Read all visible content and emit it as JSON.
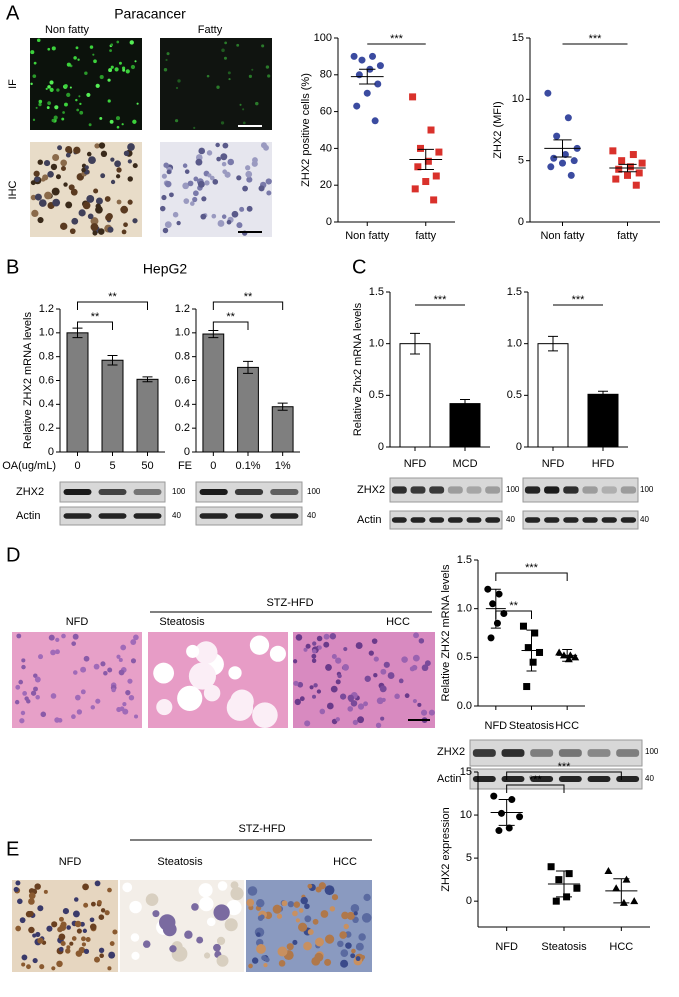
{
  "panels": {
    "A": {
      "letter": "A",
      "title": "Paracancer",
      "columns": [
        "Non fatty",
        "Fatty"
      ],
      "rows": [
        "IF",
        "IHC"
      ]
    },
    "B": {
      "letter": "B",
      "title": "HepG2",
      "blot_rows": [
        "ZHX2",
        "Actin"
      ],
      "markers": [
        "100",
        "40"
      ]
    },
    "C": {
      "letter": "C",
      "blot_rows": [
        "ZHX2",
        "Actin"
      ],
      "markers": [
        "100",
        "40"
      ]
    },
    "D": {
      "letter": "D",
      "group": "STZ-HFD",
      "images": [
        "NFD",
        "Steatosis",
        "HCC"
      ],
      "blot_rows": [
        "ZHX2",
        "Actin"
      ],
      "markers": [
        "100",
        "40"
      ]
    },
    "E": {
      "letter": "E",
      "group": "STZ-HFD",
      "images": [
        "NFD",
        "Steatosis",
        "HCC"
      ]
    }
  },
  "chart_data": [
    {
      "type": "strip",
      "y_label": "ZHX2 positive cells (%)",
      "categories": [
        "Non fatty",
        "fatty"
      ],
      "points": [
        [
          90,
          90,
          88,
          85,
          83,
          80,
          75,
          70,
          63,
          55
        ],
        [
          68,
          50,
          40,
          38,
          33,
          30,
          25,
          22,
          18,
          12
        ]
      ],
      "colors": [
        "#3b4ba0",
        "#d9312b"
      ],
      "markers": [
        "circle",
        "square"
      ],
      "mean": [
        79,
        34
      ],
      "error": [
        4,
        5.5
      ],
      "ylim": [
        0,
        100
      ],
      "yticks": [
        0,
        20,
        40,
        60,
        80,
        100
      ],
      "annotations": [
        "***"
      ]
    },
    {
      "type": "strip",
      "y_label": "ZHX2 (MFI)",
      "categories": [
        "Non fatty",
        "fatty"
      ],
      "points": [
        [
          10.5,
          8.5,
          7,
          6,
          5.5,
          5.2,
          5,
          4.8,
          4.5,
          3.8
        ],
        [
          5.8,
          5.5,
          5,
          4.8,
          4.5,
          4.3,
          4,
          3.8,
          3.5,
          3
        ]
      ],
      "colors": [
        "#3b4ba0",
        "#d9312b"
      ],
      "markers": [
        "circle",
        "square"
      ],
      "mean": [
        6,
        4.4
      ],
      "error": [
        0.7,
        0.3
      ],
      "ylim": [
        0,
        15
      ],
      "yticks": [
        0,
        5,
        10,
        15
      ],
      "annotations": [
        "***"
      ]
    },
    {
      "type": "bar",
      "y_label": "Relative ZHX2 mRNA levels",
      "x_label": "OA(ug/mL)",
      "categories": [
        "0",
        "5",
        "50"
      ],
      "values": [
        1.0,
        0.77,
        0.61
      ],
      "errors": [
        0.04,
        0.04,
        0.02
      ],
      "colors": [
        "#7f7f7f",
        "#7f7f7f",
        "#7f7f7f"
      ],
      "ylim": [
        0,
        1.2
      ],
      "yticks": [
        0,
        0.2,
        0.4,
        0.6,
        0.8,
        {
          "value": 1,
          "label": "1.0"
        },
        1.2
      ],
      "annotations": [
        "**",
        "**"
      ]
    },
    {
      "type": "bar",
      "x_label": "FE",
      "categories": [
        "0",
        "0.1%",
        "1%"
      ],
      "values": [
        0.99,
        0.71,
        0.38
      ],
      "errors": [
        0.03,
        0.05,
        0.03
      ],
      "colors": [
        "#7f7f7f",
        "#7f7f7f",
        "#7f7f7f"
      ],
      "ylim": [
        0,
        1.2
      ],
      "yticks": [
        0,
        0.2,
        0.4,
        0.6,
        0.8,
        {
          "value": 1,
          "label": "1.0"
        },
        1.2
      ],
      "annotations": [
        "**",
        "**"
      ]
    },
    {
      "type": "bar",
      "y_label": "Relative Zhx2 mRNA levels",
      "categories": [
        "NFD",
        "MCD"
      ],
      "values": [
        1.0,
        0.42
      ],
      "errors": [
        0.1,
        0.04
      ],
      "colors": [
        "#ffffff",
        "#000000"
      ],
      "ylim": [
        0,
        1.5
      ],
      "yticks": [
        0,
        0.5,
        {
          "value": 1,
          "label": "1.0"
        },
        1.5
      ],
      "annotations": [
        "***"
      ]
    },
    {
      "type": "bar",
      "categories": [
        "NFD",
        "HFD"
      ],
      "values": [
        1.0,
        0.51
      ],
      "errors": [
        0.07,
        0.03
      ],
      "colors": [
        "#ffffff",
        "#000000"
      ],
      "ylim": [
        0,
        1.5
      ],
      "yticks": [
        0,
        0.5,
        {
          "value": 1,
          "label": "1.0"
        },
        1.5
      ],
      "annotations": [
        "***"
      ]
    },
    {
      "type": "strip",
      "y_label": "Relative ZHX2 mRNA levels",
      "categories": [
        "NFD",
        "Steatosis",
        "HCC"
      ],
      "points": [
        [
          1.2,
          1.15,
          1.05,
          0.95,
          0.85,
          0.7
        ],
        [
          0.82,
          0.75,
          0.6,
          0.55,
          0.45,
          0.2
        ],
        [
          0.55,
          0.52,
          0.52,
          0.5,
          0.48
        ]
      ],
      "colors": [
        "#000000",
        "#000000",
        "#000000"
      ],
      "markers": [
        "circle",
        "square",
        "triangle"
      ],
      "mean": [
        1.0,
        0.57,
        0.52
      ],
      "error": [
        0.2,
        0.21,
        0.06
      ],
      "ylim": [
        0,
        1.5
      ],
      "yticks": [
        {
          "value": 0,
          "label": "0.0"
        },
        0.5,
        {
          "value": 1,
          "label": "1.0"
        },
        1.5
      ],
      "annotations": [
        "**",
        "***"
      ]
    },
    {
      "type": "strip",
      "y_label": "ZHX2 expression",
      "categories": [
        "NFD",
        "Steatosis",
        "HCC"
      ],
      "points": [
        [
          12.2,
          11.8,
          10.2,
          9.8,
          8.5,
          8.2
        ],
        [
          4,
          3.2,
          2.5,
          1.5,
          0.5,
          0
        ],
        [
          3.5,
          2.5,
          1.5,
          0,
          -0.2
        ]
      ],
      "colors": [
        "#000000",
        "#000000",
        "#000000"
      ],
      "markers": [
        "circle",
        "square",
        "triangle"
      ],
      "mean": [
        10.3,
        2,
        1.2
      ],
      "error": [
        1.5,
        1.5,
        1.4
      ],
      "ylim": [
        -3,
        15
      ],
      "yticks": [
        0,
        5,
        10,
        15
      ],
      "annotations": [
        "***",
        "***"
      ]
    }
  ]
}
